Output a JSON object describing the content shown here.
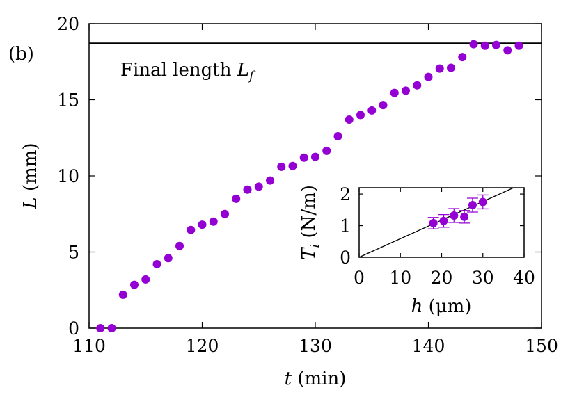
{
  "panel_label": "(b)",
  "chart_data": [
    {
      "type": "scatter",
      "title": "",
      "xlabel_var": "t",
      "xlabel_unit": " (min)",
      "ylabel_var": "L",
      "ylabel_unit": " (mm)",
      "xlim": [
        110,
        150
      ],
      "ylim": [
        0,
        20
      ],
      "xticks": [
        110,
        120,
        130,
        140,
        150
      ],
      "yticks": [
        0,
        5,
        10,
        15,
        20
      ],
      "grid": false,
      "marker_color": "#9400d3",
      "reference_line": {
        "y": 18.7,
        "label_text": "Final length ",
        "label_var": "L",
        "label_sub": "f"
      },
      "series": [
        {
          "x": [
            111,
            112,
            113,
            114,
            115,
            116,
            117,
            118,
            119,
            120,
            121,
            122,
            123,
            124,
            125,
            126,
            127,
            128,
            129,
            130,
            131,
            132,
            133,
            134,
            135,
            136,
            137,
            138,
            139,
            140,
            141,
            142,
            143,
            144,
            145,
            146,
            147,
            148
          ],
          "y": [
            0.0,
            0.0,
            2.2,
            2.85,
            3.2,
            4.2,
            4.6,
            5.4,
            6.45,
            6.8,
            7.0,
            7.5,
            8.5,
            9.1,
            9.3,
            9.7,
            10.6,
            10.65,
            11.2,
            11.25,
            11.65,
            12.6,
            13.7,
            14.0,
            14.3,
            14.65,
            15.45,
            15.6,
            15.95,
            16.5,
            17.05,
            17.1,
            17.8,
            18.65,
            18.55,
            18.6,
            18.25,
            18.55
          ]
        }
      ]
    },
    {
      "type": "scatter",
      "title": "",
      "xlabel_var": "h",
      "xlabel_unit": " (μm)",
      "ylabel_var": "T",
      "ylabel_sub": "i",
      "ylabel_unit": " (N/m)",
      "xlim": [
        0,
        40
      ],
      "ylim": [
        0,
        2.2
      ],
      "xticks": [
        0,
        10,
        20,
        30,
        40
      ],
      "yticks": [
        0,
        1,
        2
      ],
      "grid": false,
      "marker_color": "#9400d3",
      "fit_line": {
        "x": [
          0,
          40
        ],
        "y": [
          0,
          2.35
        ]
      },
      "series": [
        {
          "x": [
            18.0,
            20.5,
            23.0,
            25.5,
            27.5,
            30.0
          ],
          "y": [
            1.08,
            1.15,
            1.32,
            1.28,
            1.65,
            1.75
          ],
          "yerr": [
            0.18,
            0.2,
            0.22,
            0.2,
            0.22,
            0.22
          ]
        }
      ]
    }
  ]
}
